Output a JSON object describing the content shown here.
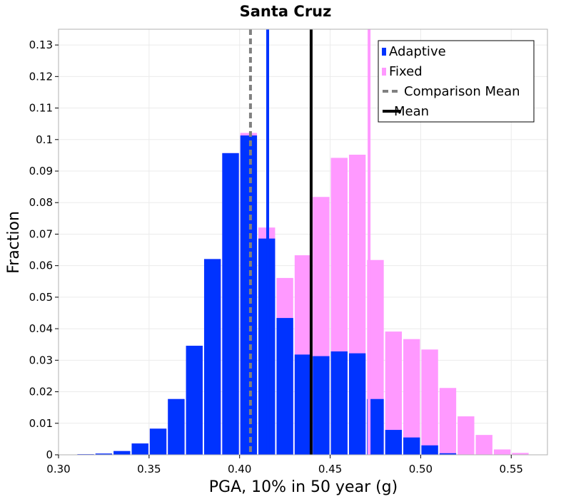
{
  "chart_data": {
    "type": "bar",
    "title": "Santa Cruz",
    "xlabel": "PGA, 10% in 50 year (g)",
    "ylabel": "Fraction",
    "xlim": [
      0.3,
      0.57
    ],
    "ylim": [
      0,
      0.135
    ],
    "grid": true,
    "bin_width": 0.01,
    "x_ticks": [
      "0.30",
      "0.35",
      "0.40",
      "0.45",
      "0.50",
      "0.55"
    ],
    "x_tick_values": [
      0.3,
      0.35,
      0.4,
      0.45,
      0.5,
      0.55
    ],
    "y_ticks": [
      "0",
      "0.01",
      "0.02",
      "0.03",
      "0.04",
      "0.05",
      "0.06",
      "0.07",
      "0.08",
      "0.09",
      "0.1",
      "0.11",
      "0.12",
      "0.13"
    ],
    "y_tick_values": [
      0,
      0.01,
      0.02,
      0.03,
      0.04,
      0.05,
      0.06,
      0.07,
      0.08,
      0.09,
      0.1,
      0.11,
      0.12,
      0.13
    ],
    "bin_centers": [
      0.315,
      0.325,
      0.335,
      0.345,
      0.355,
      0.365,
      0.375,
      0.385,
      0.395,
      0.405,
      0.415,
      0.425,
      0.435,
      0.445,
      0.455,
      0.465,
      0.475,
      0.485,
      0.495,
      0.505,
      0.515,
      0.525,
      0.535,
      0.545,
      0.555
    ],
    "series": [
      {
        "name": "Fixed",
        "color": "#ff99ff",
        "values": [
          0.0002,
          0.0004,
          0.0012,
          0.0036,
          0.0083,
          0.0177,
          0.0346,
          0.0621,
          0.0957,
          0.1021,
          0.0721,
          0.0561,
          0.0633,
          0.0818,
          0.0942,
          0.0952,
          0.0618,
          0.0391,
          0.0367,
          0.0334,
          0.0212,
          0.0122,
          0.0063,
          0.0017,
          0.0006
        ]
      },
      {
        "name": "Adaptive",
        "color": "#0033ff",
        "values": [
          0.0002,
          0.0004,
          0.0012,
          0.0036,
          0.0083,
          0.0177,
          0.0346,
          0.0621,
          0.0957,
          0.1013,
          0.0686,
          0.0434,
          0.0318,
          0.0313,
          0.0328,
          0.0322,
          0.0177,
          0.0079,
          0.0055,
          0.003,
          0.0005,
          0,
          0,
          0,
          0
        ]
      }
    ],
    "lines": [
      {
        "name": "Comparison Mean",
        "x": 0.406,
        "color": "#808080",
        "style": "dashed"
      },
      {
        "name": "Mean",
        "x": 0.4395,
        "color": "#000000",
        "style": "solid"
      },
      {
        "name": "Adaptive mean",
        "x": 0.4155,
        "color": "#0033ff",
        "style": "solid"
      },
      {
        "name": "Fixed mean",
        "x": 0.4715,
        "color": "#ff99ff",
        "style": "solid"
      }
    ],
    "legend": {
      "position": "top-right",
      "entries": [
        {
          "label": "Adaptive",
          "kind": "bar",
          "color": "#0033ff"
        },
        {
          "label": "Fixed",
          "kind": "bar",
          "color": "#ff99ff"
        },
        {
          "label": "Comparison Mean",
          "kind": "dashed-line",
          "color": "#808080"
        },
        {
          "label": "Mean",
          "kind": "solid-line",
          "color": "#000000"
        }
      ]
    }
  }
}
